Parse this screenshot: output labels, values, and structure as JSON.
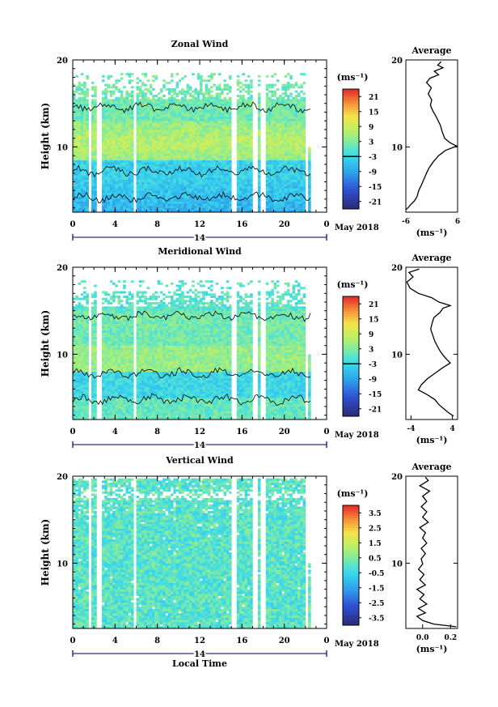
{
  "chart_data": [
    {
      "type": "heatmap",
      "title": "Zonal Wind",
      "ylabel": "Height (km)",
      "x_ticks": [
        "0",
        "4",
        "8",
        "12",
        "16",
        "20",
        "0"
      ],
      "y_ticks": [
        "20",
        "10"
      ],
      "ylim": [
        2.5,
        20
      ],
      "xlim": [
        0,
        24
      ],
      "date_marker": "14",
      "date_label": "May 2018",
      "colorbar": {
        "unit": "(ms⁻¹)",
        "ticks": [
          "21",
          "15",
          "9",
          "3",
          "-3",
          "-9",
          "-15",
          "-21"
        ],
        "range": [
          -24,
          24
        ]
      },
      "profile": {
        "title": "Average",
        "xlabel": "(ms⁻¹)",
        "x_ticks": [
          "-6",
          "6"
        ],
        "xlim": [
          -6,
          6
        ],
        "y_ticks": [
          "20",
          "10"
        ],
        "points": [
          [
            -6,
            2.8
          ],
          [
            -5.5,
            3.0
          ],
          [
            -5,
            3.3
          ],
          [
            -4,
            3.8
          ],
          [
            -3.4,
            4.3
          ],
          [
            -3,
            5
          ],
          [
            -2.4,
            5.6
          ],
          [
            -1.8,
            6.3
          ],
          [
            -1.2,
            7
          ],
          [
            -0.6,
            7.6
          ],
          [
            0.4,
            8.3
          ],
          [
            1.6,
            9
          ],
          [
            3.2,
            9.6
          ],
          [
            5.8,
            10.1
          ],
          [
            4.2,
            10.5
          ],
          [
            3,
            11
          ],
          [
            2.4,
            11.8
          ],
          [
            2,
            12.5
          ],
          [
            1.4,
            13.1
          ],
          [
            0.9,
            13.6
          ],
          [
            0.2,
            14.2
          ],
          [
            -0.3,
            14.8
          ],
          [
            0,
            15.4
          ],
          [
            -0.8,
            16.1
          ],
          [
            -0.1,
            16.8
          ],
          [
            -1.2,
            17.4
          ],
          [
            -0.4,
            17.9
          ],
          [
            1.6,
            18.3
          ],
          [
            0.6,
            18.7
          ],
          [
            2.6,
            19.1
          ],
          [
            1.4,
            19.4
          ],
          [
            2.2,
            19.8
          ]
        ]
      }
    },
    {
      "type": "heatmap",
      "title": "Meridional Wind",
      "ylabel": "Height (km)",
      "x_ticks": [
        "0",
        "4",
        "8",
        "12",
        "16",
        "20",
        "0"
      ],
      "y_ticks": [
        "20",
        "10"
      ],
      "ylim": [
        2.5,
        20
      ],
      "xlim": [
        0,
        24
      ],
      "date_marker": "14",
      "date_label": "May 2018",
      "colorbar": {
        "unit": "(ms⁻¹)",
        "ticks": [
          "21",
          "15",
          "9",
          "3",
          "-3",
          "-9",
          "-15",
          "-21"
        ],
        "range": [
          -24,
          24
        ]
      },
      "profile": {
        "title": "Average",
        "xlabel": "(ms⁻¹)",
        "x_ticks": [
          "-4",
          "4"
        ],
        "xlim": [
          -5,
          5
        ],
        "y_ticks": [
          "20",
          "10"
        ],
        "points": [
          [
            4.2,
            2.9
          ],
          [
            3.2,
            3.3
          ],
          [
            2.4,
            3.7
          ],
          [
            1.4,
            4.2
          ],
          [
            0.6,
            4.8
          ],
          [
            -1,
            5.4
          ],
          [
            -2.6,
            5.9
          ],
          [
            -2,
            6.5
          ],
          [
            -0.8,
            7.2
          ],
          [
            0.6,
            7.8
          ],
          [
            2,
            8.4
          ],
          [
            3.6,
            9
          ],
          [
            2.6,
            9.6
          ],
          [
            1.8,
            10.2
          ],
          [
            1.2,
            10.8
          ],
          [
            0.6,
            11.5
          ],
          [
            0.2,
            12.2
          ],
          [
            -0.2,
            12.9
          ],
          [
            0.1,
            13.6
          ],
          [
            0.4,
            14.2
          ],
          [
            1.6,
            14.8
          ],
          [
            2.2,
            15.3
          ],
          [
            3.6,
            15.6
          ],
          [
            1.4,
            16
          ],
          [
            0,
            16.5
          ],
          [
            -2.6,
            17
          ],
          [
            -4.2,
            17.6
          ],
          [
            -4.8,
            18.3
          ],
          [
            -3.6,
            18.9
          ],
          [
            -4.4,
            19.4
          ],
          [
            -2.4,
            19.8
          ]
        ]
      }
    },
    {
      "type": "heatmap",
      "title": "Vertical Wind",
      "ylabel": "Height (km)",
      "xlabel": "Local Time",
      "x_ticks": [
        "0",
        "4",
        "8",
        "12",
        "16",
        "20",
        "0"
      ],
      "y_ticks": [
        "20",
        "10"
      ],
      "ylim": [
        2.5,
        20
      ],
      "xlim": [
        0,
        24
      ],
      "date_marker": "14",
      "date_label": "May 2018",
      "colorbar": {
        "unit": "(ms⁻¹)",
        "ticks": [
          "3.5",
          "2.5",
          "1.5",
          "0.5",
          "-0.5",
          "-1.5",
          "-2.5",
          "-3.5"
        ],
        "range": [
          -4,
          4
        ]
      },
      "profile": {
        "title": "Average",
        "xlabel": "(ms⁻¹)",
        "x_ticks": [
          "0.0",
          "0.2"
        ],
        "xlim": [
          -0.12,
          0.25
        ],
        "y_ticks": [
          "20",
          "10"
        ],
        "points": [
          [
            0.24,
            2.7
          ],
          [
            0.08,
            3.0
          ],
          [
            0.0,
            3.4
          ],
          [
            -0.04,
            3.9
          ],
          [
            0.02,
            4.3
          ],
          [
            -0.03,
            4.8
          ],
          [
            0.03,
            5.3
          ],
          [
            -0.02,
            5.9
          ],
          [
            0.01,
            6.4
          ],
          [
            -0.04,
            7.0
          ],
          [
            0.02,
            7.5
          ],
          [
            -0.02,
            8.1
          ],
          [
            0.01,
            8.7
          ],
          [
            -0.03,
            9.3
          ],
          [
            0.0,
            9.9
          ],
          [
            -0.01,
            10.5
          ],
          [
            0.02,
            11.1
          ],
          [
            -0.01,
            11.7
          ],
          [
            0.03,
            12.3
          ],
          [
            0.0,
            12.9
          ],
          [
            0.02,
            13.5
          ],
          [
            -0.02,
            14.1
          ],
          [
            0.04,
            14.7
          ],
          [
            0.0,
            15.3
          ],
          [
            0.03,
            15.9
          ],
          [
            -0.01,
            16.5
          ],
          [
            0.03,
            17.1
          ],
          [
            0.0,
            17.7
          ],
          [
            0.05,
            18.3
          ],
          [
            -0.02,
            18.9
          ],
          [
            0.04,
            19.5
          ],
          [
            0.02,
            19.9
          ]
        ]
      }
    }
  ]
}
